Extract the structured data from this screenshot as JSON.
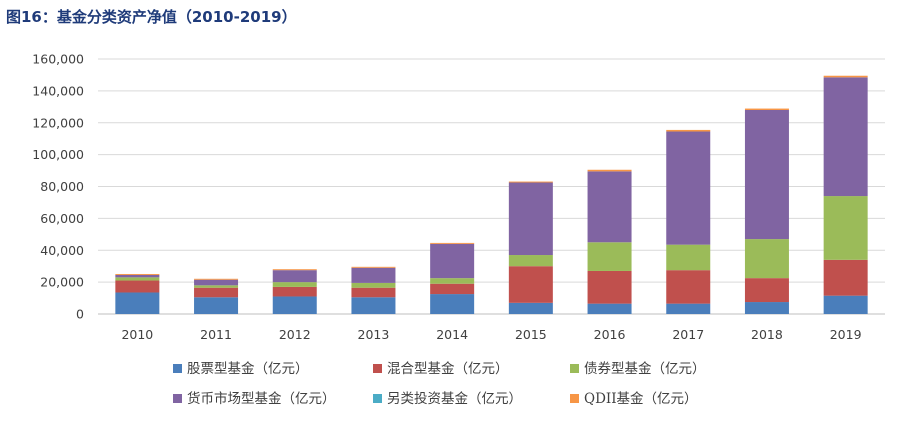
{
  "chart_data": {
    "type": "bar",
    "stacked": true,
    "title": "图16：基金分类资产净值（2010-2019）",
    "categories": [
      "2010",
      "2011",
      "2012",
      "2013",
      "2014",
      "2015",
      "2016",
      "2017",
      "2018",
      "2019"
    ],
    "ylim": [
      0,
      160000
    ],
    "yticks": [
      0,
      20000,
      40000,
      60000,
      80000,
      100000,
      120000,
      140000,
      160000
    ],
    "ytick_labels": [
      "0",
      "20,000",
      "40,000",
      "60,000",
      "80,000",
      "100,000",
      "120,000",
      "140,000",
      "160,000"
    ],
    "grid": true,
    "legend_position": "bottom",
    "series": [
      {
        "name": "股票型基金（亿元）",
        "color": "#4a7ebb",
        "values": [
          13500,
          10500,
          11000,
          10500,
          12500,
          7000,
          6500,
          6500,
          7500,
          11500
        ]
      },
      {
        "name": "混合型基金（亿元）",
        "color": "#c0504d",
        "values": [
          7500,
          6000,
          6000,
          6000,
          6500,
          23000,
          20500,
          21000,
          15000,
          22500
        ]
      },
      {
        "name": "债券型基金（亿元）",
        "color": "#9bbb59",
        "values": [
          2000,
          1500,
          3000,
          3000,
          3500,
          7000,
          18000,
          16000,
          24500,
          40000
        ]
      },
      {
        "name": "货币市场型基金（亿元）",
        "color": "#8064a2",
        "values": [
          1500,
          3500,
          7500,
          9500,
          21500,
          45500,
          44500,
          71000,
          81000,
          74500
        ]
      },
      {
        "name": "另类投资基金（亿元）",
        "color": "#4bacc6",
        "values": [
          0,
          0,
          0,
          0,
          0,
          0,
          0,
          0,
          0,
          0
        ]
      },
      {
        "name": "QDII基金（亿元）",
        "color": "#f79646",
        "values": [
          600,
          600,
          600,
          600,
          600,
          600,
          1000,
          1000,
          900,
          1000
        ]
      }
    ]
  }
}
